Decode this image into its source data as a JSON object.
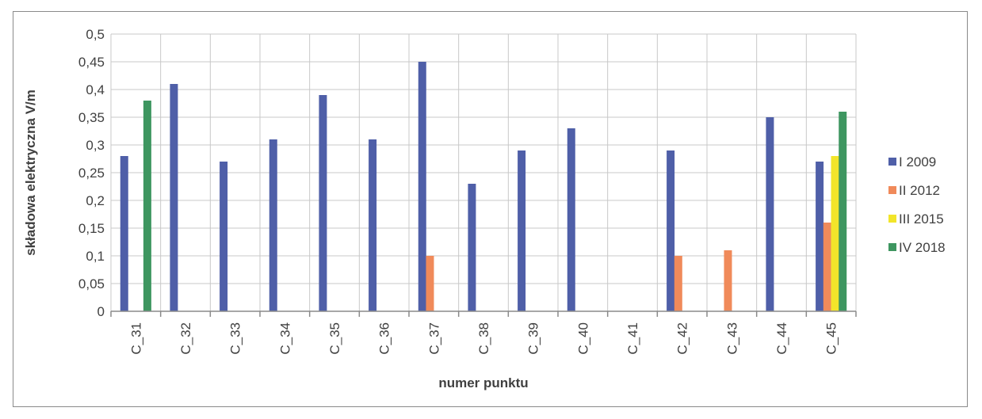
{
  "chart_data": {
    "type": "bar",
    "title": "",
    "xlabel": "numer punktu",
    "ylabel": "składowa elektryczna V/m",
    "ylim": [
      0,
      0.5
    ],
    "yticks": [
      "0",
      "0,05",
      "0,1",
      "0,15",
      "0,2",
      "0,25",
      "0,3",
      "0,35",
      "0,4",
      "0,45",
      "0,5"
    ],
    "grid": true,
    "legend_position": "right",
    "categories": [
      "C_31",
      "C_32",
      "C_33",
      "C_34",
      "C_35",
      "C_36",
      "C_37",
      "C_38",
      "C_39",
      "C_40",
      "C_41",
      "C_42",
      "C_43",
      "C_44",
      "C_45"
    ],
    "series": [
      {
        "name": "I 2009",
        "color": "#4f5fa8",
        "values": [
          0.28,
          0.41,
          0.27,
          0.31,
          0.39,
          0.31,
          0.45,
          0.23,
          0.29,
          0.33,
          null,
          0.29,
          null,
          0.35,
          0.27
        ]
      },
      {
        "name": "II 2012",
        "color": "#f08a5a",
        "values": [
          null,
          null,
          null,
          null,
          null,
          null,
          0.1,
          null,
          null,
          null,
          null,
          0.1,
          0.11,
          null,
          0.16
        ]
      },
      {
        "name": "III 2015",
        "color": "#f2e52a",
        "values": [
          null,
          null,
          null,
          null,
          null,
          null,
          null,
          null,
          null,
          null,
          null,
          null,
          null,
          null,
          0.28
        ]
      },
      {
        "name": "IV 2018",
        "color": "#3e9660",
        "values": [
          0.38,
          null,
          null,
          null,
          null,
          null,
          null,
          null,
          null,
          null,
          null,
          null,
          null,
          null,
          0.36
        ]
      }
    ]
  }
}
